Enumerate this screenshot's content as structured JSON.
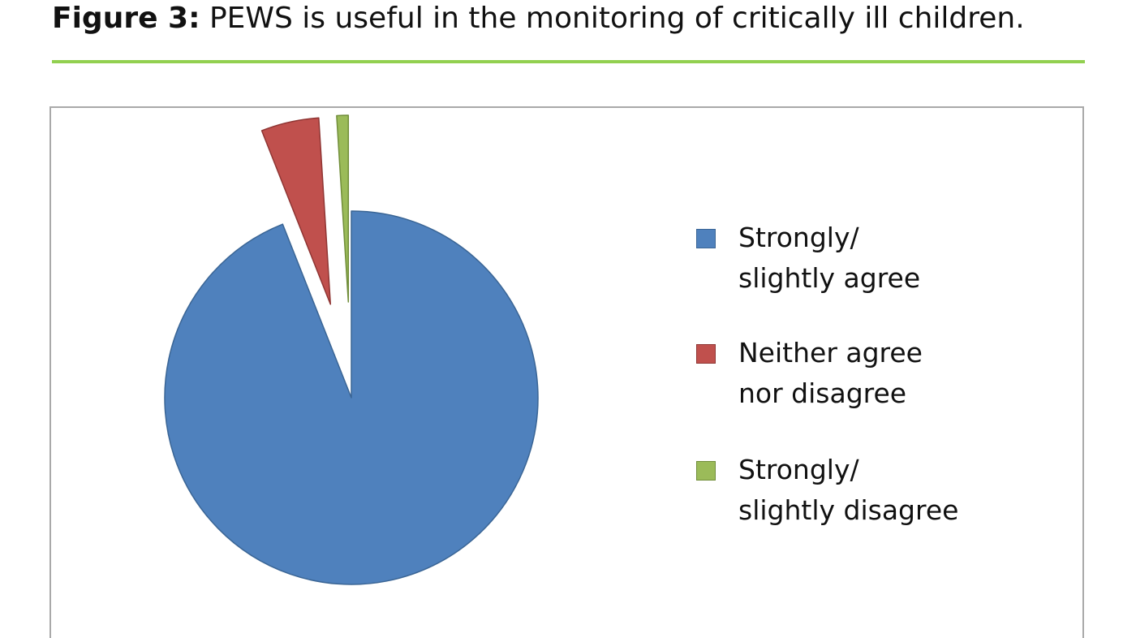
{
  "figure": {
    "label": "Figure 3:",
    "title": "PEWS is useful in the monitoring of critically ill children."
  },
  "colors": {
    "accent_rule": "#92d050"
  },
  "chart_data": {
    "type": "pie",
    "title": "",
    "legend_position": "right",
    "exploded": true,
    "start_angle_deg": 0,
    "direction": "clockwise",
    "slices": [
      {
        "label": "Strongly/\nslightly agree",
        "value": 94,
        "color": "#4f81bd",
        "stroke": "#3a6595"
      },
      {
        "label": "Neither agree\nnor disagree",
        "value": 5,
        "color": "#c0504d",
        "stroke": "#8f3533"
      },
      {
        "label": "Strongly/\nslightly disagree",
        "value": 1,
        "color": "#9bbb59",
        "stroke": "#718e3a"
      }
    ]
  }
}
